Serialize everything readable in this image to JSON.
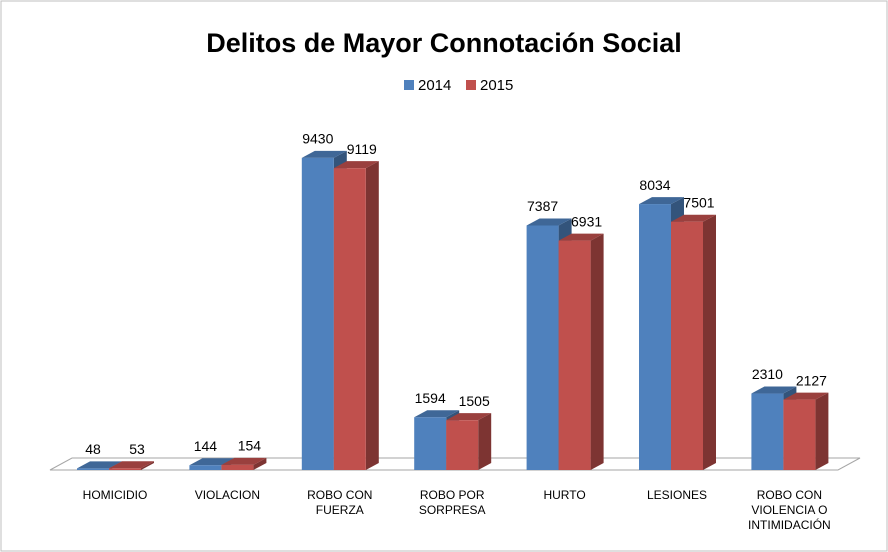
{
  "chart_data": {
    "type": "bar3d",
    "title": "Delitos de Mayor Connotación Social",
    "categories": [
      "HOMICIDIO",
      "VIOLACION",
      "ROBO CON FUERZA",
      "ROBO POR SORPRESA",
      "HURTO",
      "LESIONES",
      "ROBO CON VIOLENCIA O INTIMIDACIÓN"
    ],
    "series": [
      {
        "name": "2014",
        "color": "#4f81bd",
        "values": [
          48,
          144,
          9430,
          1594,
          7387,
          8034,
          2310
        ]
      },
      {
        "name": "2015",
        "color": "#c0504d",
        "values": [
          53,
          154,
          9119,
          1505,
          6931,
          7501,
          2127
        ]
      }
    ],
    "legend": "top"
  }
}
